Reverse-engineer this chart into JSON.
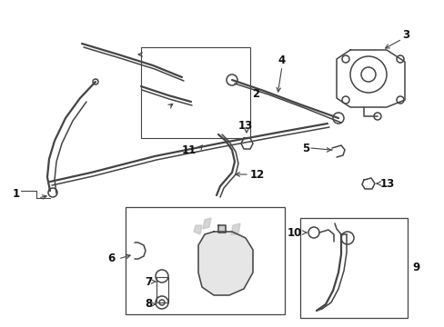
{
  "bg_color": "#ffffff",
  "lc": "#444444",
  "figsize": [
    4.89,
    3.6
  ],
  "dpi": 100,
  "label_fs": 7.5
}
